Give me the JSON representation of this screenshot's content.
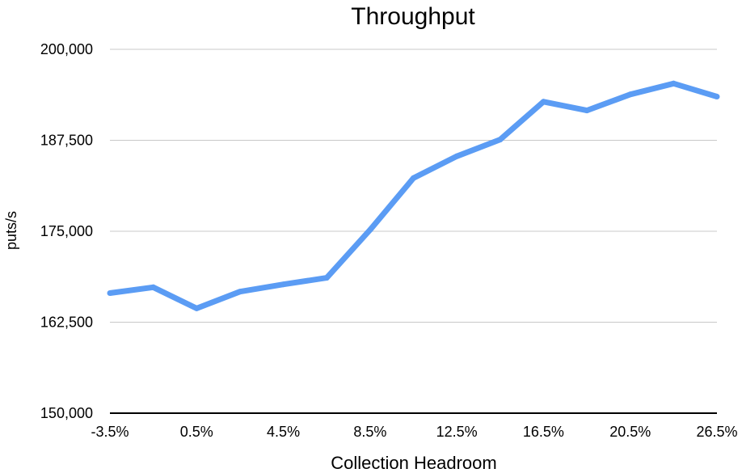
{
  "chart_data": {
    "type": "line",
    "title": "Throughput",
    "xlabel": "Collection Headroom",
    "ylabel": "puts/s",
    "x_tick_labels": [
      "-3.5%",
      "0.5%",
      "4.5%",
      "8.5%",
      "12.5%",
      "16.5%",
      "20.5%",
      "26.5%"
    ],
    "y_tick_labels": [
      "200,000",
      "187,500",
      "175,000",
      "162,500",
      "150,000"
    ],
    "ylim": [
      150000,
      200000
    ],
    "grid": true,
    "legend": "none",
    "x": [
      "-3.5%",
      "-1.5%",
      "0.5%",
      "2.5%",
      "4.5%",
      "6.5%",
      "8.5%",
      "10.5%",
      "12.5%",
      "14.5%",
      "16.5%",
      "18.5%",
      "20.5%",
      "22.5%",
      "24.5%"
    ],
    "series": [
      {
        "color": "#5b9cf4",
        "values": [
          166500,
          167300,
          164400,
          166700,
          167700,
          168600,
          175200,
          182300,
          185300,
          187600,
          192800,
          191600,
          193800,
          195300,
          193500
        ]
      }
    ]
  }
}
